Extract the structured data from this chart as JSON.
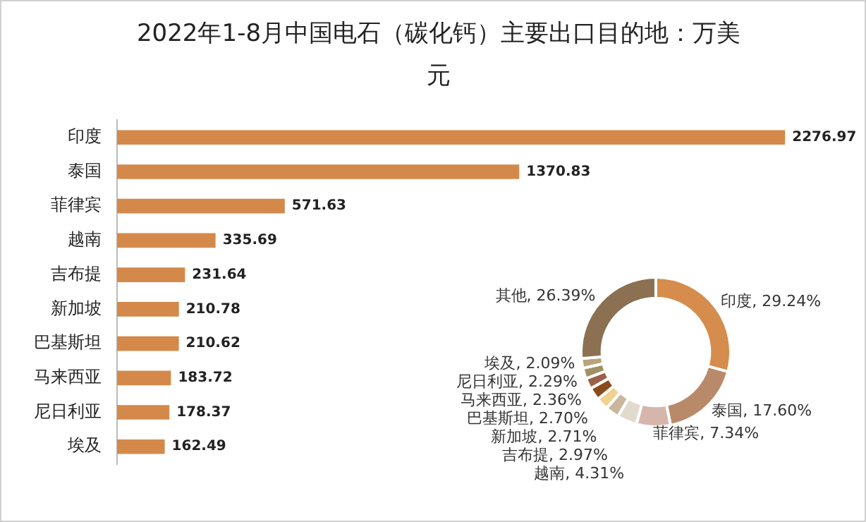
{
  "chart_data": [
    {
      "type": "bar",
      "title": "2022年1-8月中国电石（碳化钙）主要出口目的地：万美元",
      "orientation": "horizontal",
      "categories": [
        "印度",
        "泰国",
        "菲律宾",
        "越南",
        "吉布提",
        "新加坡",
        "巴基斯坦",
        "马来西亚",
        "尼日利亚",
        "埃及"
      ],
      "values": [
        2276.97,
        1370.83,
        571.63,
        335.69,
        231.64,
        210.78,
        210.62,
        183.72,
        178.37,
        162.49
      ],
      "color": "#d4894a",
      "data_labels": true,
      "legend": false
    },
    {
      "type": "donut",
      "categories": [
        "印度",
        "泰国",
        "菲律宾",
        "越南",
        "吉布提",
        "新加坡",
        "巴基斯坦",
        "马来西亚",
        "尼日利亚",
        "埃及",
        "其他"
      ],
      "values": [
        29.24,
        17.6,
        7.34,
        4.31,
        2.97,
        2.71,
        2.7,
        2.36,
        2.29,
        2.09,
        26.39
      ],
      "colors": [
        "#d58c4c",
        "#b98a6a",
        "#d6b6aa",
        "#e2dace",
        "#c9b69c",
        "#f1d190",
        "#8a4a1c",
        "#9a6048",
        "#a09064",
        "#b8a478",
        "#8b7052"
      ],
      "value_labels": [
        "29.24%",
        "17.60%",
        "7.34%",
        "4.31%",
        "2.97%",
        "2.71%",
        "2.70%",
        "2.36%",
        "2.29%",
        "2.09%",
        "26.39%"
      ]
    }
  ]
}
